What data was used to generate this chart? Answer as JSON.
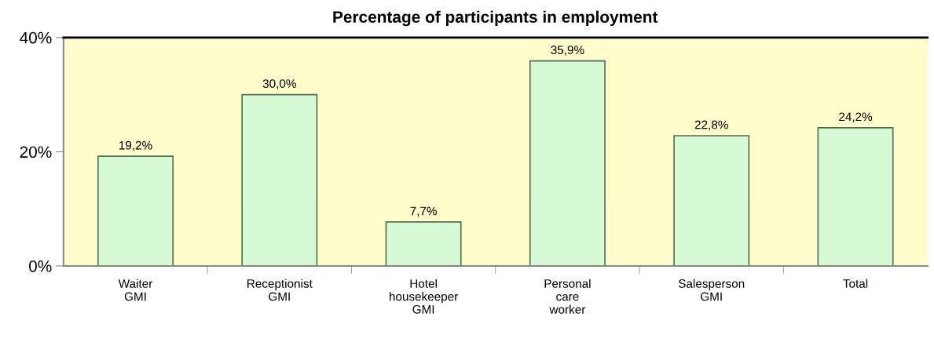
{
  "chart_data": {
    "type": "bar",
    "title": "Percentage of participants in employment",
    "categories": [
      "Waiter\nGMI",
      "Receptionist\nGMI",
      "Hotel\nhousekeeper\nGMI",
      "Personal\ncare\nworker",
      "Salesperson\nGMI",
      "Total"
    ],
    "values": [
      19.2,
      30.0,
      7.7,
      35.9,
      22.8,
      24.2
    ],
    "value_labels": [
      "19,2%",
      "30,0%",
      "7,7%",
      "35,9%",
      "22,8%",
      "24,2%"
    ],
    "color": "#d6fbd4",
    "ylim": [
      0,
      40
    ],
    "yticks": [
      {
        "value": 0,
        "label": "0%"
      },
      {
        "value": 20,
        "label": "20%"
      },
      {
        "value": 40,
        "label": "40%"
      }
    ],
    "grid": false,
    "legend": false
  }
}
